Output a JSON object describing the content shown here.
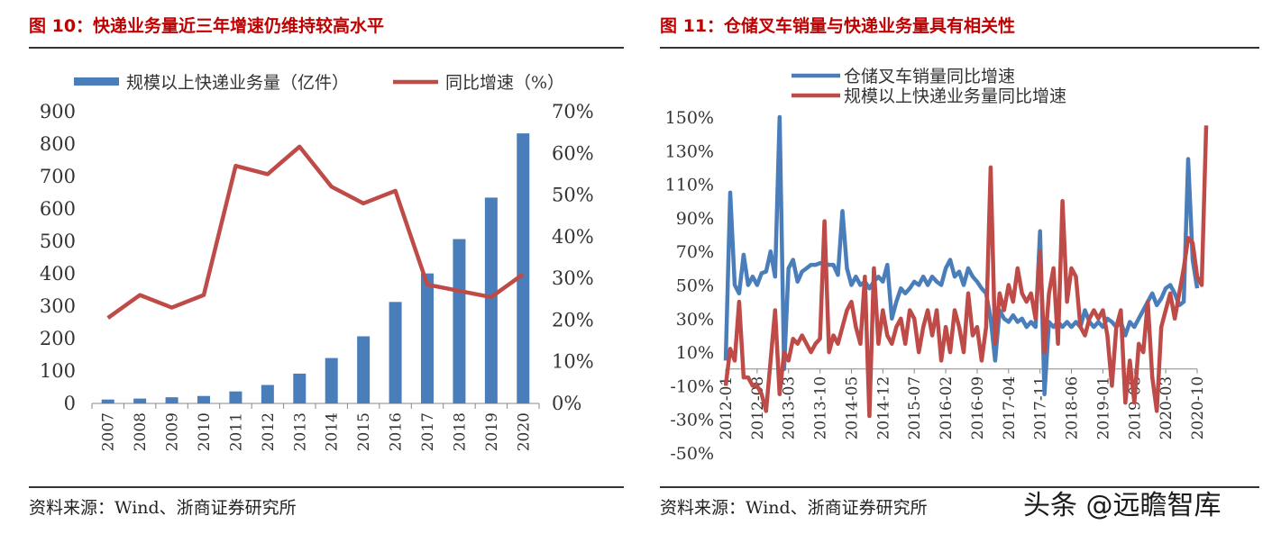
{
  "left": {
    "title": "图 10：快递业务量近三年增速仍维持较高水平",
    "source": "资料来源：Wind、浙商证券研究所"
  },
  "right": {
    "title": "图 11：仓储叉车销量与快递业务量具有相关性",
    "source": "资料来源：Wind、浙商证券研究所"
  },
  "watermark": "头条 @远瞻智库",
  "chart_data": [
    {
      "type": "bar",
      "categories": [
        "2007",
        "2008",
        "2009",
        "2010",
        "2011",
        "2012",
        "2013",
        "2014",
        "2015",
        "2016",
        "2017",
        "2018",
        "2019",
        "2020"
      ],
      "series": [
        {
          "name": "规模以上快递业务量（亿件）",
          "type": "bar",
          "axis": "left",
          "color": "#4a7ebb",
          "values": [
            12,
            15,
            19,
            23,
            37,
            57,
            92,
            140,
            207,
            313,
            401,
            507,
            635,
            833
          ]
        },
        {
          "name": "同比增速（%）",
          "type": "line",
          "axis": "right",
          "color": "#be4b48",
          "values": [
            20.5,
            26,
            23,
            26,
            57,
            55,
            61.6,
            52,
            48,
            51,
            28.5,
            27,
            25.5,
            31
          ]
        }
      ],
      "y_left": {
        "range": [
          0,
          900
        ],
        "ticks": [
          "0",
          "100",
          "200",
          "300",
          "400",
          "500",
          "600",
          "700",
          "800",
          "900"
        ]
      },
      "y_right": {
        "range": [
          0,
          70
        ],
        "ticks": [
          "0%",
          "10%",
          "20%",
          "30%",
          "40%",
          "50%",
          "60%",
          "70%"
        ]
      },
      "legend_position": "top"
    },
    {
      "type": "line",
      "x_ticks": [
        "2012-01",
        "2012-08",
        "2013-03",
        "2013-10",
        "2014-05",
        "2014-12",
        "2015-07",
        "2016-02",
        "2016-09",
        "2017-04",
        "2017-11",
        "2018-06",
        "2019-01",
        "2019-08",
        "2020-03",
        "2020-10"
      ],
      "y_range": [
        -50,
        150
      ],
      "y_ticks": [
        "150%",
        "130%",
        "110%",
        "90%",
        "70%",
        "50%",
        "30%",
        "10%",
        "-10%",
        "-30%",
        "-50%"
      ],
      "legend_position": "top-left",
      "series": [
        {
          "name": "仓储叉车销量同比增速",
          "color": "#4a7ebb",
          "values": [
            5,
            105,
            50,
            45,
            68,
            50,
            55,
            50,
            57,
            58,
            70,
            55,
            150,
            0,
            60,
            65,
            52,
            58,
            60,
            62,
            62,
            63,
            63,
            62,
            62,
            56,
            94,
            60,
            50,
            55,
            50,
            52,
            48,
            52,
            55,
            52,
            62,
            30,
            40,
            48,
            45,
            48,
            52,
            50,
            55,
            50,
            55,
            52,
            50,
            60,
            65,
            55,
            58,
            50,
            60,
            55,
            52,
            48,
            45,
            30,
            5,
            35,
            30,
            28,
            32,
            28,
            30,
            25,
            28,
            25,
            82,
            -15,
            28,
            25,
            28,
            25,
            28,
            25,
            28,
            25,
            35,
            28,
            25,
            28,
            25,
            30,
            28,
            25,
            28,
            20,
            28,
            25,
            30,
            35,
            40,
            45,
            38,
            42,
            48,
            50,
            45,
            38,
            40,
            125,
            65,
            48
          ]
        },
        {
          "name": "规模以上快递业务量同比增速",
          "color": "#be4b48",
          "values": [
            -10,
            12,
            5,
            40,
            -5,
            -5,
            -10,
            -10,
            -15,
            -25,
            5,
            35,
            -15,
            10,
            5,
            18,
            15,
            20,
            15,
            10,
            15,
            18,
            88,
            10,
            20,
            15,
            25,
            35,
            40,
            25,
            15,
            55,
            -28,
            60,
            15,
            35,
            20,
            15,
            25,
            30,
            15,
            35,
            30,
            10,
            25,
            35,
            20,
            35,
            5,
            25,
            10,
            35,
            25,
            10,
            45,
            20,
            25,
            5,
            25,
            120,
            15,
            45,
            35,
            50,
            40,
            60,
            45,
            40,
            45,
            30,
            70,
            10,
            45,
            60,
            15,
            100,
            40,
            60,
            55,
            25,
            20,
            30,
            35,
            30,
            35,
            20,
            -10,
            25,
            35,
            -20,
            5,
            -20,
            15,
            10,
            40,
            -5,
            -25,
            25,
            35,
            45,
            30,
            45,
            60,
            78,
            75,
            55,
            50,
            145
          ]
        }
      ]
    }
  ]
}
